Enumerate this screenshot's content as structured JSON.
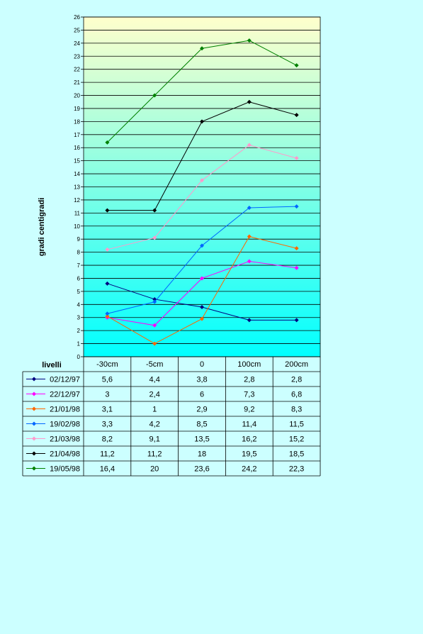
{
  "chart_data": {
    "type": "line",
    "ylabel": "gradi centigradi",
    "xlabel": "livelli",
    "categories": [
      "-30cm",
      "-5cm",
      "0",
      "100cm",
      "200cm"
    ],
    "ylim": [
      0,
      26
    ],
    "yticks": [
      0,
      1,
      2,
      3,
      4,
      5,
      6,
      7,
      8,
      9,
      10,
      11,
      12,
      13,
      14,
      15,
      16,
      17,
      18,
      19,
      20,
      21,
      22,
      23,
      24,
      25,
      26
    ],
    "grid": true,
    "legend_placement": "data table below chart",
    "series": [
      {
        "name": "02/12/97",
        "color": "#000080",
        "values": [
          5.6,
          4.4,
          3.8,
          2.8,
          2.8
        ],
        "labels": [
          "5,6",
          "4,4",
          "3,8",
          "2,8",
          "2,8"
        ]
      },
      {
        "name": "22/12/97",
        "color": "#ff00ff",
        "values": [
          3,
          2.4,
          6,
          7.3,
          6.8
        ],
        "labels": [
          "3",
          "2,4",
          "6",
          "7,3",
          "6,8"
        ]
      },
      {
        "name": "21/01/98",
        "color": "#ff6600",
        "values": [
          3.1,
          1,
          2.9,
          9.2,
          8.3
        ],
        "labels": [
          "3,1",
          "1",
          "2,9",
          "9,2",
          "8,3"
        ]
      },
      {
        "name": "19/02/98",
        "color": "#0066ff",
        "values": [
          3.3,
          4.2,
          8.5,
          11.4,
          11.5
        ],
        "labels": [
          "3,3",
          "4,2",
          "8,5",
          "11,4",
          "11,5"
        ]
      },
      {
        "name": "21/03/98",
        "color": "#ff99cc",
        "values": [
          8.2,
          9.1,
          13.5,
          16.2,
          15.2
        ],
        "labels": [
          "8,2",
          "9,1",
          "13,5",
          "16,2",
          "15,2"
        ]
      },
      {
        "name": "21/04/98",
        "color": "#000000",
        "values": [
          11.2,
          11.2,
          18,
          19.5,
          18.5
        ],
        "labels": [
          "11,2",
          "11,2",
          "18",
          "19,5",
          "18,5"
        ]
      },
      {
        "name": "19/05/98",
        "color": "#008000",
        "values": [
          16.4,
          20,
          23.6,
          24.2,
          22.3
        ],
        "labels": [
          "16,4",
          "20",
          "23,6",
          "24,2",
          "22,3"
        ]
      }
    ],
    "background_gradient": [
      "#ffffcc",
      "#00ffff"
    ]
  }
}
